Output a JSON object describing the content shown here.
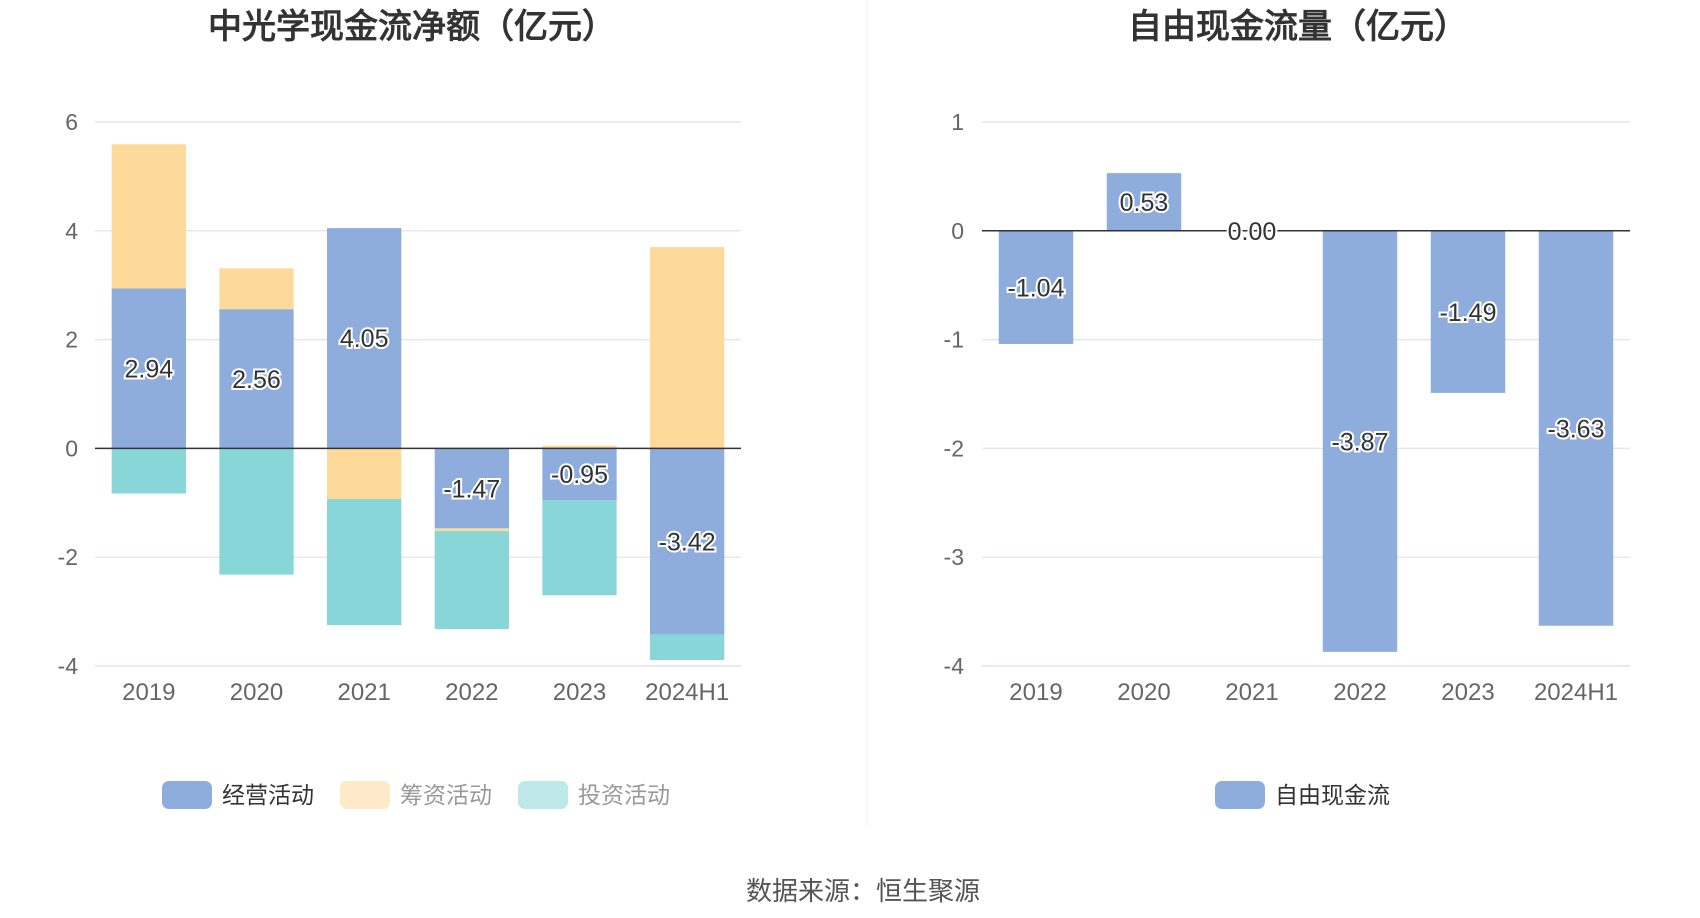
{
  "source_text": "数据来源：恒生聚源",
  "chart_data": [
    {
      "type": "bar",
      "stacked": true,
      "title": "中光学现金流净额（亿元）",
      "categories": [
        "2019",
        "2020",
        "2021",
        "2022",
        "2023",
        "2024H1"
      ],
      "ylim": [
        -4,
        6
      ],
      "yticks": [
        -4,
        -2,
        0,
        2,
        4,
        6
      ],
      "grid": true,
      "legend_position": "bottom",
      "series": [
        {
          "name": "经营活动",
          "color": "#8eaddc",
          "values": [
            2.94,
            2.56,
            4.05,
            -1.47,
            -0.95,
            -3.42
          ],
          "show_labels": true
        },
        {
          "name": "筹资活动",
          "color": "#fdd99a",
          "values": [
            2.65,
            0.75,
            -0.93,
            -0.05,
            0.05,
            3.7
          ],
          "show_labels": false
        },
        {
          "name": "投资活动",
          "color": "#89d6d8",
          "values": [
            -0.83,
            -2.32,
            -2.32,
            -1.8,
            -1.75,
            -0.47
          ],
          "show_labels": false
        }
      ]
    },
    {
      "type": "bar",
      "title": "自由现金流量（亿元）",
      "categories": [
        "2019",
        "2020",
        "2021",
        "2022",
        "2023",
        "2024H1"
      ],
      "ylim": [
        -4,
        1
      ],
      "yticks": [
        -4,
        -3,
        -2,
        -1,
        0,
        1
      ],
      "grid": true,
      "legend_position": "bottom",
      "series": [
        {
          "name": "自由现金流",
          "color": "#8eaddc",
          "values": [
            -1.04,
            0.53,
            0.0,
            -3.87,
            -1.49,
            -3.63
          ],
          "labels": [
            "-1.04",
            "0.53",
            "0.00",
            "-3.87",
            "-1.49",
            "-3.63"
          ],
          "show_labels": true
        }
      ]
    }
  ]
}
